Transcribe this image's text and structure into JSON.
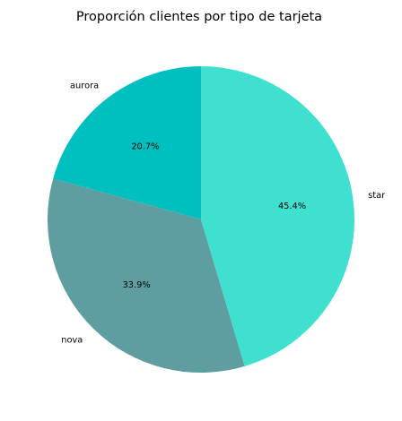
{
  "chart_data": {
    "type": "pie",
    "title": "Proporción clientes por tipo de tarjeta",
    "start_angle_deg": 90,
    "direction": "counterclockwise",
    "slices": [
      {
        "label": "aurora",
        "value": 20.7,
        "pct_label": "20.7%",
        "color": "#00BFBF"
      },
      {
        "label": "nova",
        "value": 33.9,
        "pct_label": "33.9%",
        "color": "#5F9EA0"
      },
      {
        "label": "star",
        "value": 45.4,
        "pct_label": "45.4%",
        "color": "#40E0D0"
      }
    ]
  }
}
